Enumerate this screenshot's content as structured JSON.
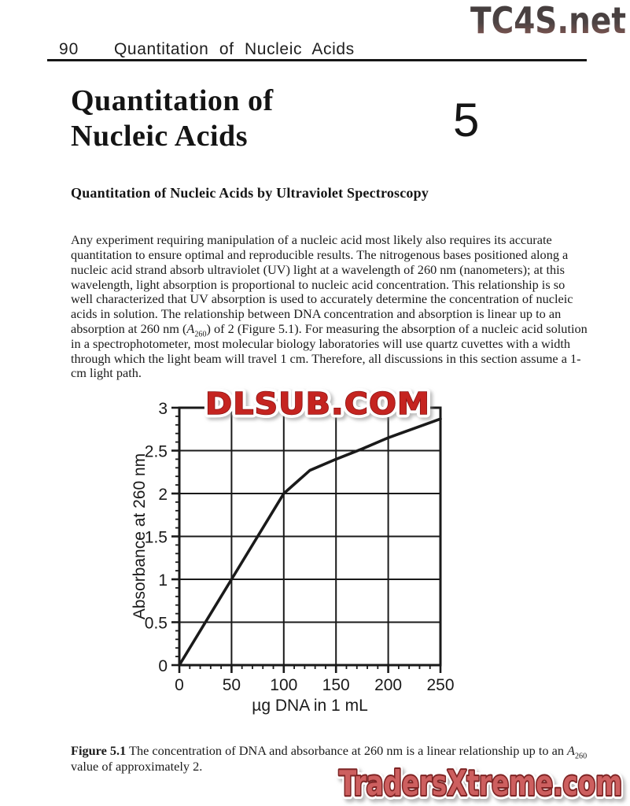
{
  "header": {
    "page_number": "90",
    "running_title": "Quantitation of Nucleic Acids"
  },
  "chapter": {
    "title_line1": "Quantitation of",
    "title_line2": "Nucleic Acids",
    "number": "5"
  },
  "section": {
    "heading": "Quantitation of Nucleic Acids by Ultraviolet Spectroscopy"
  },
  "body": {
    "part1": "Any experiment requiring manipulation of a nucleic acid most likely also requires its accurate quantitation to ensure optimal and reproducible results. The nitrogenous bases positioned along a nucleic acid strand absorb ultraviolet (UV) light at a wavelength of 260 nm (nanometers); at this wavelength, light absorption is proportional to nucleic acid concentration. This relationship is so well characterized that UV absorption is used to accurately determine the concentration of nucleic acids in solution. The relationship between DNA concentration and absorption is linear up to an absorption at 260 nm (",
    "sub_base": "A",
    "subscript": "260",
    "part2": ") of 2 (Figure 5.1). For measuring the absorption of a nucleic acid solution in a spectrophotometer, most molecular biology laboratories will use quartz cuvettes with a width through which the light beam will travel 1 cm. Therefore, all discussions in this section assume a 1-cm light path."
  },
  "figure_caption": {
    "label": "Figure 5.1",
    "part1": " The concentration of DNA and absorbance at 260 nm is a linear relationship up to an ",
    "sub_base": "A",
    "subscript": "260",
    "part2": " value of approximately 2."
  },
  "watermarks": {
    "top_logo": "TC4S.net",
    "middle_stamp": "DLSUB.COM",
    "bottom_stamp": "TradersXtreme.com"
  },
  "colors": {
    "ink": "#1a1a1a",
    "stamp_red": "#c52420",
    "stamp_red_outline": "#8e1414",
    "stamp_salmon": "#cd5f5f",
    "stamp_salmon_outline": "#7d2424",
    "logo_gray_top": "#423c3c",
    "logo_red_bottom": "#966059"
  },
  "chart_data": {
    "type": "line",
    "title": "",
    "xlabel": "µg DNA in 1 mL",
    "ylabel": "Absorbance at 260 nm",
    "x": [
      0,
      50,
      100,
      125,
      150,
      175,
      200,
      225,
      250
    ],
    "y": [
      0,
      1.0,
      2.0,
      2.27,
      2.4,
      2.52,
      2.65,
      2.76,
      2.87
    ],
    "xlim": [
      0,
      250
    ],
    "ylim": [
      0,
      3
    ],
    "x_ticks": [
      0,
      50,
      100,
      150,
      200,
      250
    ],
    "y_ticks": [
      0,
      0.5,
      1,
      1.5,
      2,
      2.5,
      3
    ],
    "x_minor_step": 10,
    "y_minor_step": 0.1,
    "grid": true,
    "legend": "none",
    "line_color": "#1a1a1a"
  }
}
